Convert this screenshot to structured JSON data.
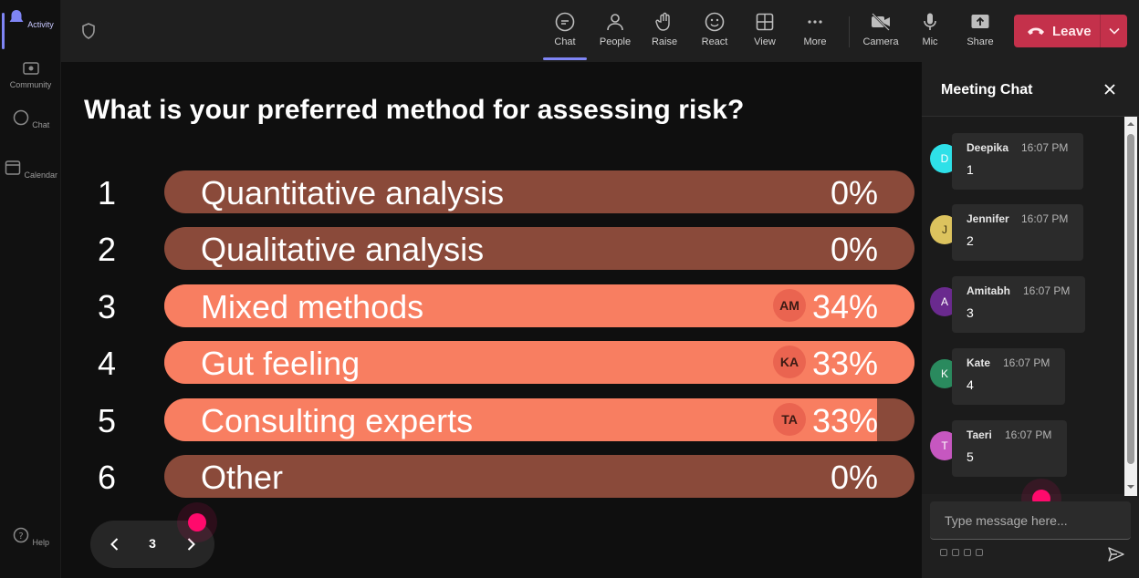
{
  "rail": {
    "items": [
      {
        "label": "Activity",
        "icon": "bell-icon"
      },
      {
        "label": "Community",
        "icon": "community-icon"
      },
      {
        "label": "Chat",
        "icon": "chat-icon"
      },
      {
        "label": "Calendar",
        "icon": "calendar-icon"
      }
    ],
    "help_label": "Help"
  },
  "toolbar": {
    "buttons": [
      {
        "label": "Chat",
        "icon": "chat-bubble-icon"
      },
      {
        "label": "People",
        "icon": "people-icon"
      },
      {
        "label": "Raise",
        "icon": "hand-icon"
      },
      {
        "label": "React",
        "icon": "smiley-icon"
      },
      {
        "label": "View",
        "icon": "grid-icon"
      },
      {
        "label": "More",
        "icon": "ellipsis-icon"
      },
      {
        "label": "Camera",
        "icon": "camera-off-icon"
      },
      {
        "label": "Mic",
        "icon": "mic-icon"
      },
      {
        "label": "Share",
        "icon": "share-icon"
      }
    ],
    "leave_label": "Leave"
  },
  "poll": {
    "question": "What is your preferred method for assessing risk?",
    "options": [
      {
        "num": "1",
        "label": "Quantitative analysis",
        "pct": "0%",
        "fill": 0,
        "avatar": ""
      },
      {
        "num": "2",
        "label": "Qualitative analysis",
        "pct": "0%",
        "fill": 0,
        "avatar": ""
      },
      {
        "num": "3",
        "label": "Mixed methods",
        "pct": "34%",
        "fill": 1.0,
        "avatar": "AM"
      },
      {
        "num": "4",
        "label": "Gut feeling",
        "pct": "33%",
        "fill": 1.0,
        "avatar": "KA"
      },
      {
        "num": "5",
        "label": "Consulting experts",
        "pct": "33%",
        "fill": 0.95,
        "avatar": "TA"
      },
      {
        "num": "6",
        "label": "Other",
        "pct": "0%",
        "fill": 0,
        "avatar": ""
      }
    ],
    "page": "3"
  },
  "chat": {
    "title": "Meeting Chat",
    "messages": [
      {
        "initial": "D",
        "name": "Deepika",
        "time": "16:07 PM",
        "text": "1",
        "color": "#2ee0e8"
      },
      {
        "initial": "J",
        "name": "Jennifer",
        "time": "16:07 PM",
        "text": "2",
        "color": "#dcc35e"
      },
      {
        "initial": "A",
        "name": "Amitabh",
        "time": "16:07 PM",
        "text": "3",
        "color": "#6a2a8e"
      },
      {
        "initial": "K",
        "name": "Kate",
        "time": "16:07 PM",
        "text": "4",
        "color": "#2a8a5e"
      },
      {
        "initial": "T",
        "name": "Taeri",
        "time": "16:07 PM",
        "text": "5",
        "color": "#c657c0"
      }
    ],
    "compose_placeholder": "Type message here..."
  }
}
